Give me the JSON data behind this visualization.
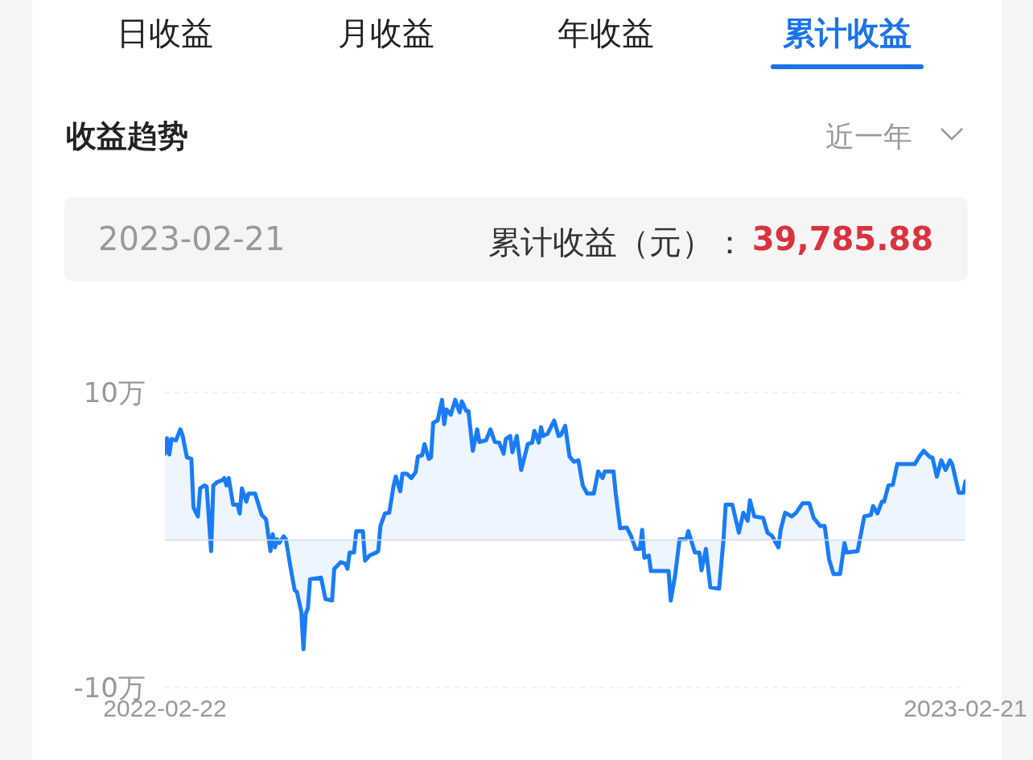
{
  "chart_data": {
    "type": "area",
    "title": "收益趋势",
    "annotations": [
      "日收益",
      "月收益",
      "年收益",
      "累计收益",
      "近一年",
      "2023-02-21",
      "累计收益（元）：",
      "39,785.88"
    ],
    "x": [
      "2022-02-22",
      "2022-02-23",
      "2022-02-24",
      "2022-02-25",
      "2022-02-27",
      "2022-03-01",
      "2022-03-02",
      "2022-03-04",
      "2022-03-06",
      "2022-03-07",
      "2022-03-09",
      "2022-03-10",
      "2022-03-12",
      "2022-03-13",
      "2022-03-15",
      "2022-03-16",
      "2022-03-18",
      "2022-03-20",
      "2022-03-21",
      "2022-03-22",
      "2022-03-23",
      "2022-03-25",
      "2022-03-27",
      "2022-03-28",
      "2022-03-29",
      "2022-03-31",
      "2022-04-01",
      "2022-04-04",
      "2022-04-07",
      "2022-04-09",
      "2022-04-11",
      "2022-04-12",
      "2022-04-13",
      "2022-04-14",
      "2022-04-15",
      "2022-04-17",
      "2022-04-18",
      "2022-04-20",
      "2022-04-22",
      "2022-04-23",
      "2022-04-25",
      "2022-04-26",
      "2022-04-27",
      "2022-04-28",
      "2022-04-29",
      "2022-05-04",
      "2022-05-06",
      "2022-05-09",
      "2022-05-10",
      "2022-05-13",
      "2022-05-15",
      "2022-05-16",
      "2022-05-17",
      "2022-05-19",
      "2022-05-20",
      "2022-05-23",
      "2022-05-24",
      "2022-05-26",
      "2022-05-29",
      "2022-05-30",
      "2022-05-31",
      "2022-06-02",
      "2022-06-04",
      "2022-06-06",
      "2022-06-07",
      "2022-06-09",
      "2022-06-10",
      "2022-06-12",
      "2022-06-14",
      "2022-06-16",
      "2022-06-17",
      "2022-06-19",
      "2022-06-20",
      "2022-06-22",
      "2022-06-23",
      "2022-06-24",
      "2022-06-26",
      "2022-06-28",
      "2022-06-29",
      "2022-06-30",
      "2022-07-02",
      "2022-07-04",
      "2022-07-06",
      "2022-07-07",
      "2022-07-09",
      "2022-07-10",
      "2022-07-12",
      "2022-07-14",
      "2022-07-15",
      "2022-07-18",
      "2022-07-20",
      "2022-07-22",
      "2022-07-24",
      "2022-07-26",
      "2022-07-27",
      "2022-07-29",
      "2022-07-30",
      "2022-08-01",
      "2022-08-03",
      "2022-08-06",
      "2022-08-08",
      "2022-08-09",
      "2022-08-11",
      "2022-08-12",
      "2022-08-13",
      "2022-08-15",
      "2022-08-18",
      "2022-08-20",
      "2022-08-21",
      "2022-08-23",
      "2022-08-25",
      "2022-08-27",
      "2022-08-29",
      "2022-08-31",
      "2022-09-02",
      "2022-09-05",
      "2022-09-07",
      "2022-09-09",
      "2022-09-10",
      "2022-09-14",
      "2022-09-15",
      "2022-09-17",
      "2022-09-20",
      "2022-09-22",
      "2022-09-24",
      "2022-09-26",
      "2022-09-27",
      "2022-09-28",
      "2022-09-30",
      "2022-10-01",
      "2022-10-09",
      "2022-10-10",
      "2022-10-12",
      "2022-10-14",
      "2022-10-17",
      "2022-10-18",
      "2022-10-21",
      "2022-10-23",
      "2022-10-24",
      "2022-10-26",
      "2022-10-28",
      "2022-11-01",
      "2022-11-03",
      "2022-11-04",
      "2022-11-07",
      "2022-11-10",
      "2022-11-12",
      "2022-11-14",
      "2022-11-15",
      "2022-11-17",
      "2022-11-21",
      "2022-11-23",
      "2022-11-25",
      "2022-11-28",
      "2022-11-29",
      "2022-12-01",
      "2022-12-04",
      "2022-12-06",
      "2022-12-09",
      "2022-12-12",
      "2022-12-14",
      "2022-12-17",
      "2022-12-19",
      "2022-12-21",
      "2022-12-23",
      "2022-12-26",
      "2022-12-28",
      "2022-12-29",
      "2023-01-03",
      "2023-01-04",
      "2023-01-06",
      "2023-01-09",
      "2023-01-10",
      "2023-01-12",
      "2023-01-14",
      "2023-01-15",
      "2023-01-17",
      "2023-01-19",
      "2023-01-21",
      "2023-01-29",
      "2023-01-31",
      "2023-02-02",
      "2023-02-05",
      "2023-02-06",
      "2023-02-08",
      "2023-02-10",
      "2023-02-12",
      "2023-02-14",
      "2023-02-15",
      "2023-02-18",
      "2023-02-20",
      "2023-02-21"
    ],
    "values": [
      5.85,
      6.9,
      5.8,
      6.85,
      6.75,
      7.5,
      7.1,
      5.6,
      5.5,
      2.2,
      1.6,
      3.5,
      3.7,
      3.6,
      -0.75,
      3.7,
      3.95,
      4.05,
      4.2,
      3.7,
      4.2,
      2.4,
      2.4,
      1.8,
      3.5,
      2.6,
      3.15,
      3.15,
      1.7,
      1.4,
      -0.75,
      0.4,
      -0.5,
      0.05,
      -0.2,
      0.25,
      0.05,
      -1.75,
      -3.4,
      -3.5,
      -4.85,
      -7.4,
      -5.0,
      -4.65,
      -2.65,
      -2.55,
      -4.0,
      -4.1,
      -1.95,
      -1.5,
      -1.6,
      -1.95,
      -0.85,
      -0.85,
      0.6,
      0.6,
      -1.4,
      -1.05,
      -0.85,
      -0.75,
      0.95,
      1.8,
      1.85,
      3.7,
      4.3,
      3.3,
      4.5,
      4.5,
      4.2,
      4.6,
      5.65,
      5.75,
      6.5,
      5.5,
      5.6,
      7.95,
      8.1,
      9.5,
      7.85,
      8.85,
      8.5,
      9.5,
      8.65,
      9.4,
      8.75,
      8.75,
      6.05,
      7.5,
      6.65,
      6.75,
      7.5,
      6.65,
      6.6,
      5.85,
      6.85,
      7.05,
      5.95,
      7.05,
      4.75,
      6.5,
      6.6,
      7.4,
      6.6,
      7.65,
      7.05,
      7.2,
      8.1,
      7.05,
      7.1,
      7.75,
      5.65,
      5.3,
      5.4,
      3.7,
      3.15,
      3.15,
      4.65,
      4.2,
      4.65,
      4.65,
      3.15,
      0.8,
      0.85,
      0.25,
      -0.6,
      -0.6,
      0.7,
      -1.2,
      -1.05,
      -2.1,
      -2.1,
      -4.1,
      -2.4,
      0.05,
      0.05,
      0.6,
      -0.85,
      -0.85,
      -2.05,
      -0.6,
      -3.2,
      -3.3,
      0.05,
      2.4,
      2.4,
      0.5,
      1.85,
      1.3,
      2.7,
      1.6,
      1.5,
      0.5,
      0.3,
      -0.5,
      0.7,
      1.85,
      1.6,
      1.85,
      2.5,
      2.5,
      1.5,
      0.95,
      0.95,
      -1.3,
      -2.3,
      -2.3,
      -0.2,
      -0.85,
      -0.75,
      0.05,
      1.6,
      1.7,
      2.3,
      1.8,
      2.6,
      2.6,
      3.7,
      3.75,
      5.15,
      5.15,
      5.65,
      6.05,
      5.6,
      5.6,
      4.3,
      5.4,
      4.75,
      5.4,
      5.15,
      3.2,
      3.2,
      3.98
    ],
    "color": "#1a7cf5",
    "xlim": [
      "2022-02-22",
      "2023-02-21"
    ],
    "xticks": [
      "2022-02-22",
      "2023-02-21"
    ],
    "ylim": [
      -10,
      10
    ],
    "yticks": [
      {
        "value": 10,
        "label": "10万"
      },
      {
        "value": -10,
        "label": "-10万"
      }
    ],
    "grid": "y",
    "ref_lines": [
      {
        "axis": "y",
        "value": 0,
        "color": "#dcdcdc"
      }
    ]
  }
}
